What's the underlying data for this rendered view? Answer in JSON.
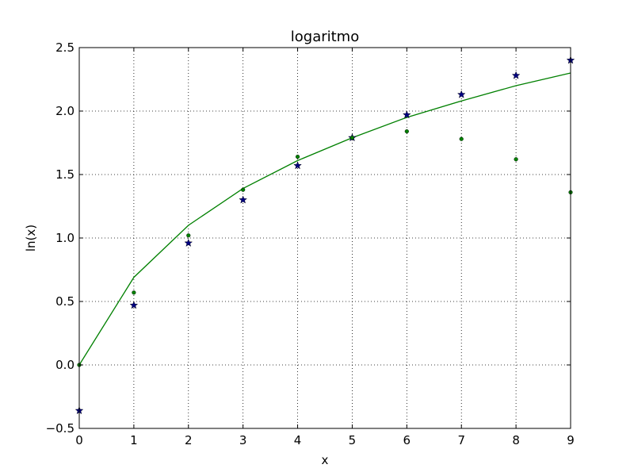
{
  "chart_data": {
    "type": "line",
    "title": "logaritmo",
    "xlabel": "x",
    "ylabel": "ln(x)",
    "xlim": [
      0,
      9
    ],
    "ylim": [
      -0.5,
      2.5
    ],
    "grid": true,
    "xticks": [
      0,
      1,
      2,
      3,
      4,
      5,
      6,
      7,
      8,
      9
    ],
    "yticks": [
      -0.5,
      0.0,
      0.5,
      1.0,
      1.5,
      2.0,
      2.5
    ],
    "xtick_labels": [
      "0",
      "1",
      "2",
      "3",
      "4",
      "5",
      "6",
      "7",
      "8",
      "9"
    ],
    "ytick_labels": [
      "−0.5",
      "0.0",
      "0.5",
      "1.0",
      "1.5",
      "2.0",
      "2.5"
    ],
    "series": [
      {
        "kind": "line",
        "color": "#008000",
        "x": [
          0,
          1,
          2,
          3,
          4,
          5,
          6,
          7,
          8,
          9
        ],
        "y": [
          0.0,
          0.69,
          1.1,
          1.39,
          1.61,
          1.79,
          1.95,
          2.08,
          2.2,
          2.3
        ]
      },
      {
        "kind": "star",
        "color": "#000080",
        "x": [
          0,
          1,
          2,
          3,
          4,
          5,
          6,
          7,
          8,
          9
        ],
        "y": [
          -0.36,
          0.47,
          0.96,
          1.3,
          1.57,
          1.79,
          1.97,
          2.13,
          2.28,
          2.4
        ]
      },
      {
        "kind": "dot",
        "color": "#008000",
        "x": [
          0,
          1,
          2,
          3,
          4,
          5,
          6,
          7,
          8,
          9
        ],
        "y": [
          0.0,
          0.57,
          1.02,
          1.38,
          1.64,
          1.79,
          1.84,
          1.78,
          1.62,
          1.36
        ]
      }
    ]
  }
}
